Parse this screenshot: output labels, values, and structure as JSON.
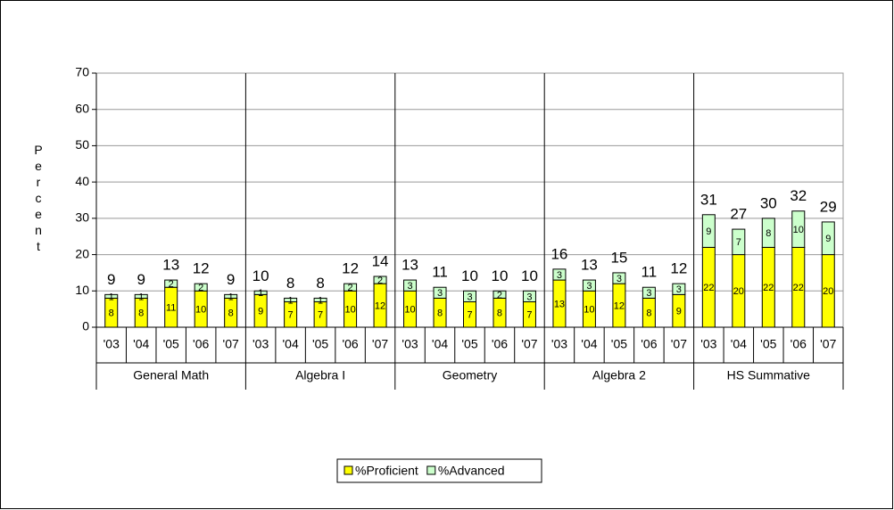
{
  "chart_data": {
    "type": "stacked_bar",
    "y_label": "Percent",
    "groups": [
      "General Math",
      "Algebra I",
      "Geometry",
      "Algebra 2",
      "HS Summative"
    ],
    "categories": [
      "'03",
      "'04",
      "'05",
      "'06",
      "'07",
      "'03",
      "'04",
      "'05",
      "'06",
      "'07",
      "'03",
      "'04",
      "'05",
      "'06",
      "'07",
      "'03",
      "'04",
      "'05",
      "'06",
      "'07",
      "'03",
      "'04",
      "'05",
      "'06",
      "'07"
    ],
    "series": [
      {
        "name": "%Proficient",
        "color": "#ffff00",
        "values": [
          8,
          8,
          11,
          10,
          8,
          9,
          7,
          7,
          10,
          12,
          10,
          8,
          7,
          8,
          7,
          13,
          10,
          12,
          8,
          9,
          22,
          20,
          22,
          22,
          20
        ]
      },
      {
        "name": "%Advanced",
        "color": "#ccffcc",
        "values": [
          1,
          1,
          2,
          2,
          1,
          1,
          1,
          1,
          2,
          2,
          3,
          3,
          3,
          2,
          3,
          3,
          3,
          3,
          3,
          3,
          9,
          7,
          8,
          10,
          9
        ]
      }
    ],
    "totals": [
      9,
      9,
      13,
      12,
      9,
      10,
      8,
      8,
      12,
      14,
      13,
      11,
      10,
      10,
      10,
      16,
      13,
      15,
      11,
      12,
      31,
      27,
      30,
      32,
      29
    ],
    "ylim": [
      0,
      70
    ],
    "yticks": [
      0,
      10,
      20,
      30,
      40,
      50,
      60,
      70
    ],
    "grid": true,
    "legend": "bottom"
  }
}
